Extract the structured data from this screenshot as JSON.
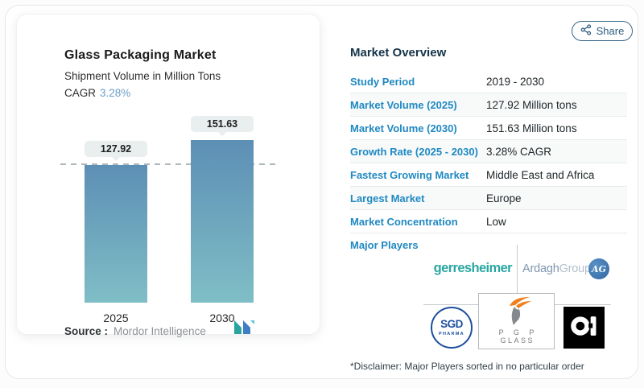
{
  "share": {
    "label": "Share"
  },
  "chart": {
    "title": "Glass Packaging Market",
    "subtitle": "Shipment Volume in Million Tons",
    "cagr_label": "CAGR",
    "cagr_value": "3.28%",
    "source_label": "Source :",
    "source_value": "Mordor Intelligence"
  },
  "chart_data": {
    "type": "bar",
    "categories": [
      "2025",
      "2030"
    ],
    "values": [
      127.92,
      151.63
    ],
    "value_labels": [
      "127.92",
      "151.63"
    ],
    "title": "Glass Packaging Market",
    "subtitle": "Shipment Volume in Million Tons",
    "cagr": "3.28%",
    "ylim": [
      0,
      182
    ],
    "reference_line": 127.92,
    "grid": false,
    "bar_color_top": "#5d8fb5",
    "bar_color_bottom": "#7fbec6"
  },
  "overview": {
    "title": "Market Overview",
    "rows": [
      {
        "label": "Study Period",
        "value": "2019 - 2030"
      },
      {
        "label": "Market Volume (2025)",
        "value": "127.92 Million tons"
      },
      {
        "label": "Market Volume (2030)",
        "value": "151.63 Million tons"
      },
      {
        "label": "Growth Rate (2025 - 2030)",
        "value": "3.28% CAGR"
      },
      {
        "label": "Fastest Growing Market",
        "value": "Middle East and Africa"
      },
      {
        "label": "Largest Market",
        "value": "Europe"
      },
      {
        "label": "Market Concentration",
        "value": "Low"
      }
    ],
    "major_players_label": "Major Players",
    "players": [
      "Gerresheimer",
      "Ardagh Group",
      "SGD Pharma",
      "PGP Glass",
      "O-I"
    ]
  },
  "logos": {
    "gerresheimer_text": "gerresheimer",
    "ardagh_text_1": "Ardagh",
    "ardagh_text_2": "Group",
    "ardagh_badge": "AG",
    "sgd_line1": "SGD",
    "sgd_line2": "PHARMA",
    "pgp_line1": "P G P",
    "pgp_line2": "GLASS"
  },
  "disclaimer": "*Disclaimer: Major Players sorted in no particular order",
  "colors": {
    "accent_blue": "#2089c2",
    "teal": "#2aa7a2",
    "cagr_blue": "#6b9dc7",
    "heading_navy": "#16344a",
    "share_border": "#3a688c"
  }
}
